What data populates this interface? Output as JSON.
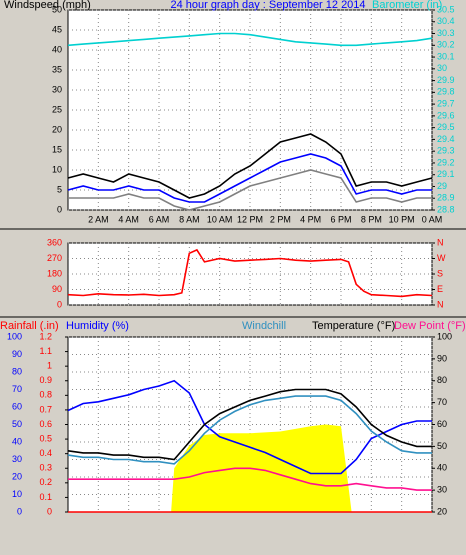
{
  "chart_data": [
    {
      "type": "line",
      "title": "24 hour graph day : September 12 2014",
      "title_color": "#0000ff",
      "ylabel": "Windspeed (mph)",
      "ycolor": "#000000",
      "y2label": "Barometer (in)",
      "y2color": "#00d0d0",
      "grid": true,
      "x": [
        0,
        1,
        2,
        3,
        4,
        5,
        6,
        7,
        8,
        9,
        10,
        11,
        12,
        13,
        14,
        15,
        16,
        17,
        18,
        19,
        20,
        21,
        22,
        23,
        24
      ],
      "xlim": [
        0,
        24
      ],
      "xticks": [
        {
          "value": 2,
          "label": "2 AM"
        },
        {
          "value": 4,
          "label": "4 AM"
        },
        {
          "value": 6,
          "label": "6 AM"
        },
        {
          "value": 8,
          "label": "8 AM"
        },
        {
          "value": 10,
          "label": "10 AM"
        },
        {
          "value": 12,
          "label": "12 PM"
        },
        {
          "value": 14,
          "label": "2 PM"
        },
        {
          "value": 16,
          "label": "4 PM"
        },
        {
          "value": 18,
          "label": "6 PM"
        },
        {
          "value": 20,
          "label": "8 PM"
        },
        {
          "value": 22,
          "label": "10 PM"
        },
        {
          "value": 24,
          "label": "0 AM"
        }
      ],
      "ylim": [
        0,
        50
      ],
      "yticks": [
        0,
        5,
        10,
        15,
        20,
        25,
        30,
        35,
        40,
        45,
        50
      ],
      "y2lim": [
        28.8,
        30.5
      ],
      "y2ticks": [
        28.8,
        28.9,
        29,
        29.1,
        29.2,
        29.3,
        29.4,
        29.5,
        29.6,
        29.7,
        29.8,
        29.9,
        30,
        30.1,
        30.2,
        30.3,
        30.4,
        30.5
      ],
      "series": [
        {
          "color": "#808080",
          "values": [
            3,
            3,
            3,
            3,
            4,
            3,
            3,
            1,
            0,
            1,
            2,
            4,
            6,
            7,
            8,
            9,
            10,
            9,
            8,
            2,
            3,
            3,
            2,
            3,
            3
          ]
        },
        {
          "color": "#000000",
          "values": [
            8,
            9,
            8,
            7,
            9,
            8,
            7,
            5,
            3,
            4,
            6,
            9,
            11,
            14,
            17,
            18,
            19,
            17,
            14,
            6,
            7,
            7,
            6,
            7,
            8
          ]
        },
        {
          "color": "#0000ff",
          "values": [
            5,
            6,
            5,
            5,
            6,
            5,
            5,
            3,
            2,
            2,
            4,
            6,
            8,
            10,
            12,
            13,
            14,
            13,
            11,
            4,
            5,
            5,
            4,
            5,
            5
          ]
        },
        {
          "color": "#00d0d0",
          "axis": "y2",
          "values": [
            30.2,
            30.21,
            30.22,
            30.23,
            30.24,
            30.25,
            30.26,
            30.27,
            30.28,
            30.29,
            30.3,
            30.3,
            30.29,
            30.27,
            30.25,
            30.23,
            30.22,
            30.21,
            30.2,
            30.2,
            30.21,
            30.22,
            30.23,
            30.24,
            30.26
          ]
        }
      ]
    },
    {
      "type": "line",
      "ycolor": "#ff0000",
      "y2color": "#ff0000",
      "grid": true,
      "x": [
        0,
        1,
        2,
        3,
        4,
        5,
        6,
        7,
        7.5,
        8,
        8.5,
        9,
        10,
        11,
        12,
        13,
        14,
        15,
        16,
        17,
        18,
        18.5,
        19,
        19.5,
        20,
        21,
        22,
        23,
        24
      ],
      "xlim": [
        0,
        24
      ],
      "ylim": [
        0,
        360
      ],
      "yticks": [
        0,
        90,
        180,
        270,
        360
      ],
      "y2lim": [
        0,
        360
      ],
      "y2ticks": [
        {
          "value": 360,
          "label": "N"
        },
        {
          "value": 270,
          "label": "W"
        },
        {
          "value": 180,
          "label": "S"
        },
        {
          "value": 90,
          "label": "E"
        },
        {
          "value": 0,
          "label": "N"
        }
      ],
      "series": [
        {
          "color": "#ff0000",
          "values": [
            60,
            55,
            65,
            60,
            58,
            62,
            55,
            60,
            70,
            300,
            320,
            250,
            270,
            255,
            260,
            265,
            270,
            260,
            255,
            260,
            265,
            250,
            120,
            80,
            60,
            55,
            50,
            60,
            55
          ]
        }
      ]
    },
    {
      "type": "line",
      "ylabel": "Humidity (%)",
      "ycolor": "#0000ff",
      "y2label": "Temperature (°F)",
      "y2color": "#000000",
      "y3label": "Rainfall (.in)",
      "y3color": "#ff0000",
      "grid": true,
      "x": [
        0,
        1,
        2,
        3,
        4,
        5,
        6,
        7,
        8,
        9,
        10,
        11,
        12,
        13,
        14,
        15,
        16,
        17,
        18,
        19,
        20,
        21,
        22,
        23,
        24
      ],
      "xlim": [
        0,
        24
      ],
      "ylim": [
        0,
        100
      ],
      "yticks": [
        0,
        10,
        20,
        30,
        40,
        50,
        60,
        70,
        80,
        90,
        100
      ],
      "y2lim": [
        20,
        100
      ],
      "y2ticks": [
        20,
        30,
        40,
        50,
        60,
        70,
        80,
        90,
        100
      ],
      "y3lim": [
        0,
        1.2
      ],
      "y3ticks": [
        0,
        0.1,
        0.2,
        0.3,
        0.4,
        0.5,
        0.6,
        0.7,
        0.8,
        0.9,
        1,
        1.1,
        1.2
      ],
      "series": [
        {
          "color": "#ffff00",
          "area": true,
          "x": [
            6.8,
            7,
            8,
            9,
            10,
            12,
            14,
            16,
            17,
            18,
            18.7
          ],
          "values": [
            0,
            25,
            38,
            44,
            45,
            45,
            46,
            49,
            50,
            49,
            0
          ]
        },
        {
          "color": "#ff0000",
          "axis": "y3",
          "x": [
            0,
            24
          ],
          "values": [
            0,
            0
          ]
        },
        {
          "color": "#0000ff",
          "values": [
            58,
            62,
            63,
            65,
            67,
            70,
            72,
            75,
            68,
            50,
            43,
            40,
            37,
            34,
            30,
            26,
            22,
            22,
            22,
            30,
            42,
            46,
            50,
            52,
            52
          ]
        },
        {
          "name": "Dew Point (°F)",
          "color": "#ff1090",
          "axis": "y2",
          "values": [
            35,
            35,
            35,
            35,
            35,
            35,
            35,
            35,
            36,
            38,
            39,
            40,
            40,
            39,
            37,
            35,
            33,
            32,
            32,
            33,
            32,
            31,
            31,
            30,
            30
          ]
        },
        {
          "name": "Windchill",
          "color": "#3090c0",
          "axis": "y2",
          "values": [
            46,
            45,
            45,
            44,
            44,
            43,
            43,
            42,
            48,
            56,
            62,
            66,
            69,
            71,
            72,
            73,
            73,
            73,
            71,
            65,
            57,
            52,
            48,
            47,
            47
          ]
        },
        {
          "color": "#000000",
          "axis": "y2",
          "values": [
            48,
            47,
            47,
            46,
            46,
            45,
            45,
            44,
            52,
            60,
            65,
            68,
            71,
            73,
            75,
            76,
            76,
            76,
            74,
            68,
            60,
            55,
            52,
            50,
            50
          ]
        }
      ]
    }
  ]
}
